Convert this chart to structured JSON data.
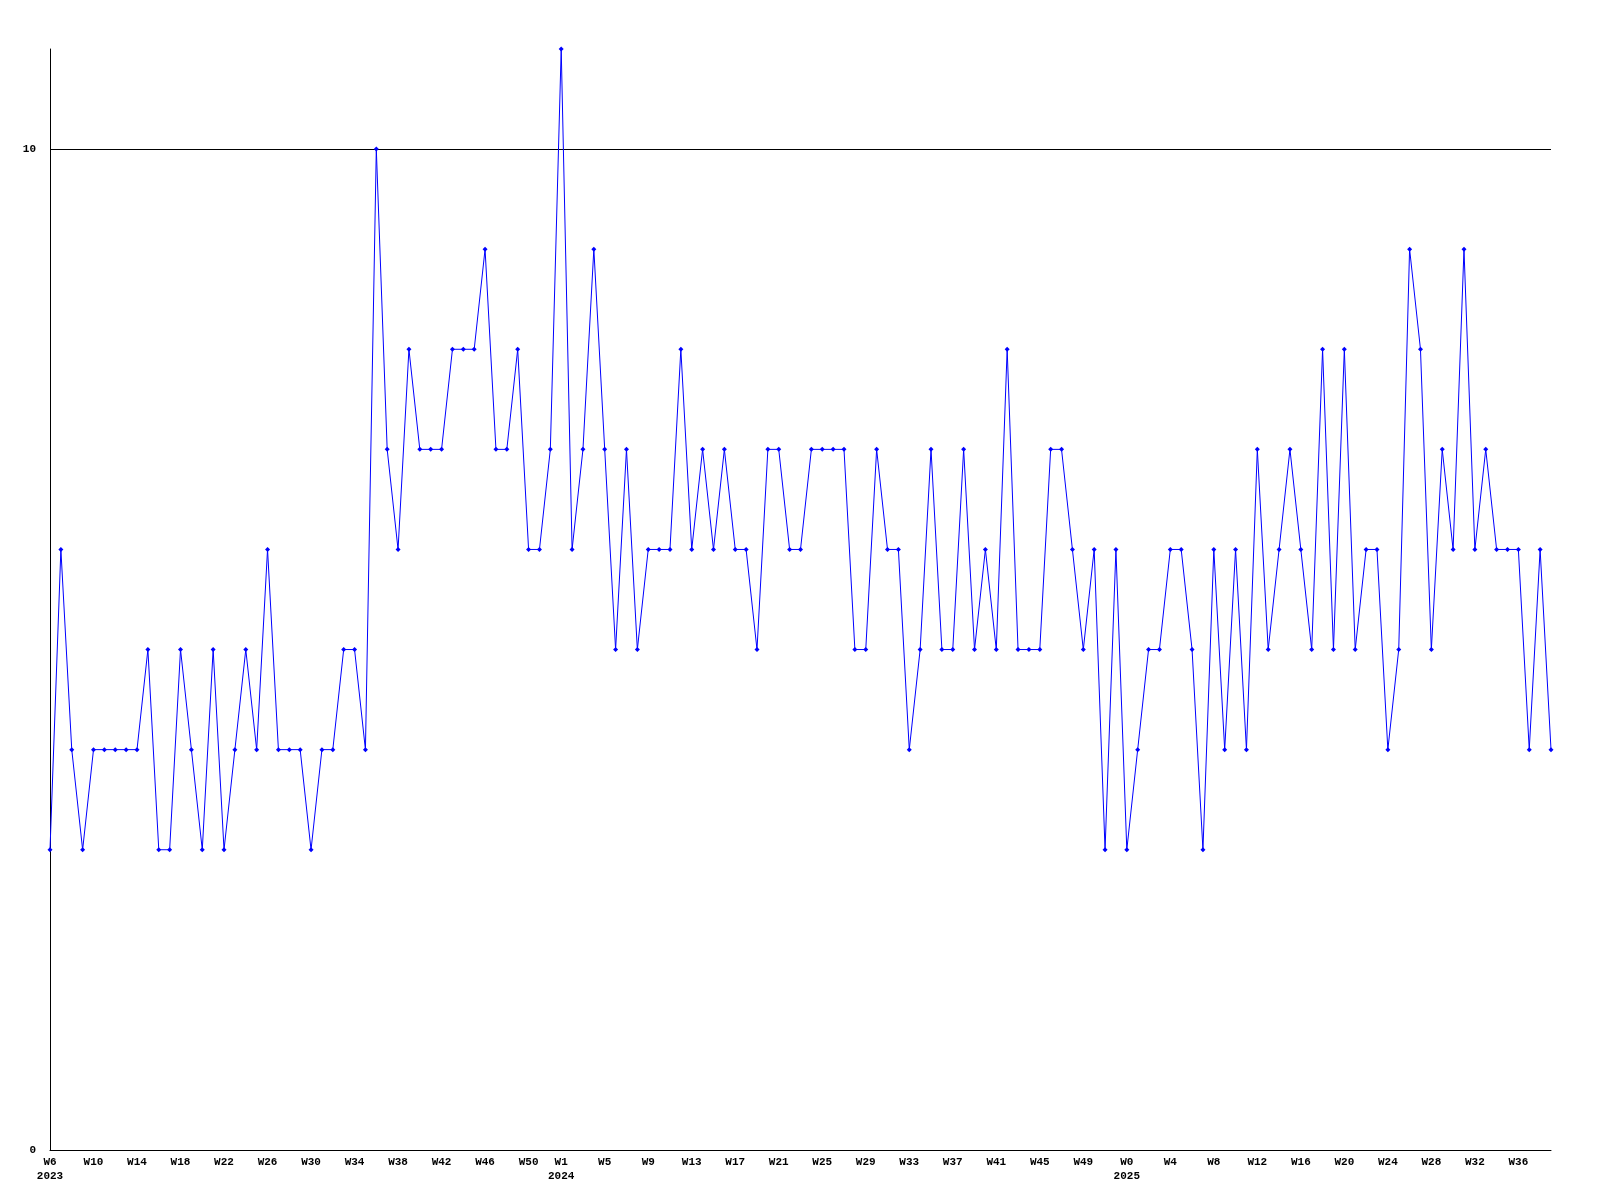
{
  "chart_data": {
    "type": "line",
    "categories": [
      "W6\n2023",
      null,
      null,
      null,
      "W10",
      null,
      null,
      null,
      "W14",
      null,
      null,
      null,
      "W18",
      null,
      null,
      null,
      "W22",
      null,
      null,
      null,
      "W26",
      null,
      null,
      null,
      "W30",
      null,
      null,
      null,
      "W34",
      null,
      null,
      null,
      "W38",
      null,
      null,
      null,
      "W42",
      null,
      null,
      null,
      "W46",
      null,
      null,
      null,
      "W50",
      null,
      null,
      "W1\n2024",
      null,
      null,
      null,
      "W5",
      null,
      null,
      null,
      "W9",
      null,
      null,
      null,
      "W13",
      null,
      null,
      null,
      "W17",
      null,
      null,
      null,
      "W21",
      null,
      null,
      null,
      "W25",
      null,
      null,
      null,
      "W29",
      null,
      null,
      null,
      "W33",
      null,
      null,
      null,
      "W37",
      null,
      null,
      null,
      "W41",
      null,
      null,
      null,
      "W45",
      null,
      null,
      null,
      "W49",
      null,
      null,
      null,
      "W0\n2025",
      null,
      null,
      null,
      "W4",
      null,
      null,
      null,
      "W8",
      null,
      null,
      null,
      "W12",
      null,
      null,
      null,
      "W16",
      null,
      null,
      null,
      "W20",
      null,
      null,
      null,
      "W24",
      null,
      null,
      null,
      "W28",
      null,
      null,
      null,
      "W32",
      null,
      null,
      null,
      "W36",
      null,
      null,
      null
    ],
    "series": [
      {
        "color": "#0000ff",
        "values": [
          3,
          6,
          4,
          3,
          4,
          4,
          4,
          4,
          4,
          5,
          3,
          3,
          5,
          4,
          3,
          5,
          3,
          4,
          5,
          4,
          6,
          4,
          4,
          4,
          3,
          4,
          4,
          5,
          5,
          4,
          10,
          7,
          6,
          8,
          7,
          7,
          7,
          8,
          8,
          8,
          9,
          7,
          7,
          8,
          6,
          6,
          7,
          11,
          6,
          7,
          9,
          7,
          5,
          7,
          5,
          6,
          6,
          6,
          8,
          6,
          7,
          6,
          7,
          6,
          6,
          5,
          7,
          7,
          6,
          6,
          7,
          7,
          7,
          7,
          5,
          5,
          7,
          6,
          6,
          4,
          5,
          7,
          5,
          5,
          7,
          5,
          6,
          5,
          8,
          5,
          5,
          5,
          7,
          7,
          6,
          5,
          6,
          3,
          6,
          3,
          4,
          5,
          5,
          6,
          6,
          5,
          3,
          6,
          4,
          6,
          4,
          7,
          5,
          6,
          7,
          6,
          5,
          8,
          5,
          8,
          5,
          6,
          6,
          4,
          5,
          9,
          8,
          5,
          7,
          6,
          9,
          6,
          7,
          6,
          6,
          6,
          4,
          6,
          4
        ]
      }
    ],
    "ylim": [
      0,
      11
    ],
    "yticks": [
      0,
      10
    ],
    "grid": "y",
    "marker": "diamond",
    "line_style": "solid"
  }
}
